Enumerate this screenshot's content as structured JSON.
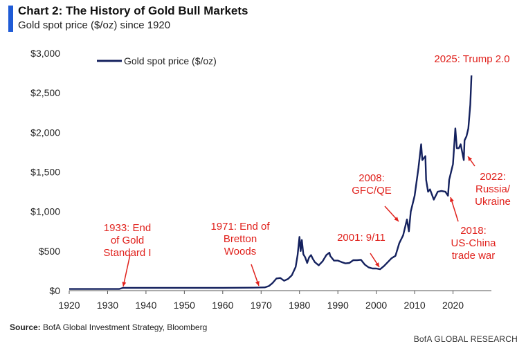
{
  "header": {
    "title": "Chart 2: The History of Gold Bull Markets",
    "subtitle": "Gold spot price ($/oz) since 1920"
  },
  "footer": {
    "source_label": "Source:",
    "source_text": "BofA Global Investment Strategy, Bloomberg",
    "brand": "BofA GLOBAL RESEARCH"
  },
  "colors": {
    "line": "#14215e",
    "annotation": "#e0201b",
    "accent": "#1f5bd6",
    "axis": "#555555"
  },
  "chart_data": {
    "type": "line",
    "title": "Chart 2: The History of Gold Bull Markets",
    "subtitle": "Gold spot price ($/oz) since 1920",
    "xlabel": "",
    "ylabel": "",
    "xlim": [
      1920,
      2030
    ],
    "ylim": [
      0,
      3000
    ],
    "x_ticks": [
      1920,
      1930,
      1940,
      1950,
      1960,
      1970,
      1980,
      1990,
      2000,
      2010,
      2020
    ],
    "y_ticks": [
      0,
      500,
      1000,
      1500,
      2000,
      2500,
      3000
    ],
    "y_tick_labels": [
      "$0",
      "$500",
      "$1,000",
      "$1,500",
      "$2,000",
      "$2,500",
      "$3,000"
    ],
    "grid": false,
    "legend": {
      "position": "top-left",
      "entries": [
        "Gold spot price ($/oz)"
      ]
    },
    "series": [
      {
        "name": "Gold spot price ($/oz)",
        "x": [
          1920,
          1925,
          1933,
          1934,
          1940,
          1950,
          1960,
          1968,
          1971,
          1972,
          1973,
          1974,
          1975,
          1976,
          1977,
          1978,
          1979,
          1979.5,
          1980,
          1980.3,
          1980.6,
          1981,
          1981.5,
          1982,
          1982.5,
          1983,
          1983.5,
          1984,
          1985,
          1986,
          1987,
          1987.8,
          1988,
          1989,
          1990,
          1991,
          1992,
          1993,
          1994,
          1995,
          1996,
          1997,
          1998,
          1999,
          2000,
          2001,
          2002,
          2003,
          2004,
          2005,
          2006,
          2007,
          2008,
          2008.5,
          2009,
          2010,
          2011,
          2011.7,
          2012,
          2012.8,
          2013,
          2013.5,
          2014,
          2015,
          2016,
          2017,
          2018,
          2018.7,
          2019,
          2020,
          2020.6,
          2021,
          2021.5,
          2022,
          2022.8,
          2023,
          2023.5,
          2024,
          2024.5,
          2024.8
        ],
        "values": [
          20.7,
          20.7,
          20.7,
          35,
          35,
          35,
          35,
          38,
          41,
          58,
          97,
          154,
          160,
          125,
          148,
          193,
          300,
          450,
          680,
          500,
          640,
          460,
          420,
          350,
          420,
          450,
          400,
          360,
          320,
          370,
          450,
          480,
          440,
          380,
          380,
          360,
          345,
          350,
          385,
          385,
          390,
          330,
          295,
          280,
          280,
          270,
          310,
          360,
          410,
          440,
          600,
          700,
          900,
          750,
          1000,
          1200,
          1550,
          1850,
          1650,
          1700,
          1400,
          1250,
          1280,
          1150,
          1250,
          1260,
          1250,
          1200,
          1400,
          1600,
          2050,
          1800,
          1800,
          1850,
          1650,
          1900,
          1950,
          2050,
          2350,
          2720
        ]
      }
    ],
    "annotations": [
      {
        "text": "1933: End of Gold Standard I",
        "lines": [
          "1933: End",
          "of Gold",
          "Standard I"
        ],
        "x": 1933,
        "y": 20
      },
      {
        "text": "1971: End of Bretton Woods",
        "lines": [
          "1971: End of",
          "Bretton",
          "Woods"
        ],
        "x": 1971,
        "y": 41
      },
      {
        "text": "2001: 9/11",
        "lines": [
          "2001: 9/11"
        ],
        "x": 2001,
        "y": 270
      },
      {
        "text": "2008: GFC/QE",
        "lines": [
          "2008:",
          "GFC/QE"
        ],
        "x": 2008,
        "y": 900
      },
      {
        "text": "2018: US-China trade war",
        "lines": [
          "2018:",
          "US-China",
          "trade war"
        ],
        "x": 2018,
        "y": 1250
      },
      {
        "text": "2022: Russia/ Ukraine",
        "lines": [
          "2022:",
          "Russia/",
          "Ukraine"
        ],
        "x": 2022,
        "y": 1800
      },
      {
        "text": "2025: Trump 2.0",
        "lines": [
          "2025: Trump 2.0"
        ],
        "x": 2025,
        "y": 2720
      }
    ]
  }
}
